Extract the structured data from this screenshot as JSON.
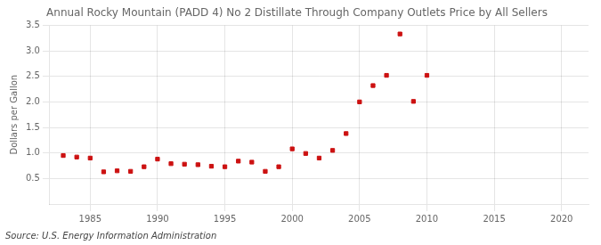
{
  "chart_data": {
    "type": "scatter",
    "title": "Annual Rocky Mountain (PADD 4) No 2 Distillate Through Company Outlets Price by All Sellers",
    "ylabel": "Dollars per Gallon",
    "source": "Source: U.S. Energy Information Administration",
    "x": [
      1983,
      1984,
      1985,
      1986,
      1987,
      1988,
      1989,
      1990,
      1991,
      1992,
      1993,
      1994,
      1995,
      1996,
      1997,
      1998,
      1999,
      2000,
      2001,
      2002,
      2003,
      2004,
      2005,
      2006,
      2007,
      2008,
      2009,
      2010
    ],
    "values": [
      0.95,
      0.92,
      0.9,
      0.63,
      0.65,
      0.64,
      0.73,
      0.88,
      0.79,
      0.78,
      0.77,
      0.74,
      0.73,
      0.84,
      0.82,
      0.64,
      0.73,
      1.08,
      0.99,
      0.9,
      1.05,
      1.38,
      2.0,
      2.32,
      2.52,
      3.33,
      2.01,
      2.52
    ],
    "color": "#cc1111",
    "marker": "square",
    "xlim": [
      1982,
      2022
    ],
    "ylim": [
      0.0,
      3.5
    ],
    "xticks": [
      1985,
      1990,
      1995,
      2000,
      2005,
      2010,
      2015,
      2020
    ],
    "yticks": [
      0.5,
      {
        "value": 1.0,
        "label": "1.0"
      },
      1.5,
      {
        "value": 2.0,
        "label": "2.0"
      },
      2.5,
      {
        "value": 3.0,
        "label": "3.0"
      },
      3.5
    ],
    "grid": true
  }
}
